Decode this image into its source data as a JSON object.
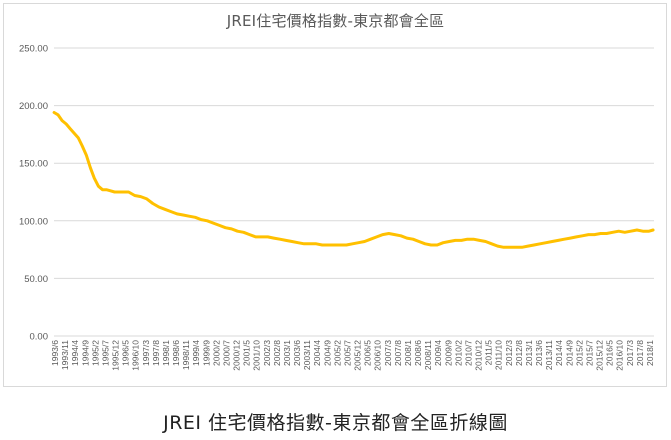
{
  "chart_data": {
    "type": "line",
    "title": "JREI住宅價格指數-東京都會全區",
    "xlabel": "",
    "ylabel": "",
    "ylim": [
      0,
      250
    ],
    "y_ticks": [
      "0.00",
      "50.00",
      "100.00",
      "150.00",
      "200.00",
      "250.00"
    ],
    "grid": true,
    "x_labels": [
      "1993/6",
      "1993/11",
      "1994/4",
      "1994/9",
      "1995/2",
      "1995/7",
      "1995/12",
      "1996/5",
      "1996/10",
      "1997/3",
      "1997/8",
      "1998/1",
      "1998/6",
      "1998/11",
      "1999/4",
      "1999/9",
      "2000/2",
      "2000/7",
      "2000/12",
      "2001/5",
      "2001/10",
      "2002/3",
      "2002/8",
      "2003/1",
      "2003/6",
      "2003/11",
      "2004/4",
      "2004/9",
      "2005/2",
      "2005/7",
      "2005/12",
      "2006/5",
      "2006/10",
      "2007/3",
      "2007/8",
      "2008/1",
      "2008/6",
      "2008/11",
      "2009/4",
      "2009/9",
      "2010/2",
      "2010/7",
      "2010/12",
      "2011/5",
      "2011/10",
      "2012/3",
      "2012/8",
      "2013/1",
      "2013/6",
      "2013/11",
      "2014/4",
      "2014/9",
      "2015/2",
      "2015/7",
      "2015/12",
      "2016/5",
      "2016/10",
      "2017/3",
      "2017/8",
      "2018/1"
    ],
    "series": [
      {
        "color": "#ffc000",
        "x": [
          1993.42,
          1993.58,
          1993.75,
          1993.92,
          1994.08,
          1994.25,
          1994.42,
          1994.58,
          1994.75,
          1994.92,
          1995.08,
          1995.25,
          1995.42,
          1995.58,
          1995.75,
          1995.92,
          1996.08,
          1996.25,
          1996.5,
          1996.75,
          1997.0,
          1997.25,
          1997.5,
          1997.75,
          1998.0,
          1998.25,
          1998.5,
          1998.75,
          1999.0,
          1999.25,
          1999.5,
          1999.75,
          2000.0,
          2000.25,
          2000.5,
          2000.75,
          2001.0,
          2001.25,
          2001.5,
          2001.75,
          2002.0,
          2002.25,
          2002.5,
          2002.75,
          2003.0,
          2003.25,
          2003.5,
          2003.75,
          2004.0,
          2004.25,
          2004.5,
          2004.75,
          2005.0,
          2005.25,
          2005.5,
          2005.75,
          2006.0,
          2006.25,
          2006.5,
          2006.75,
          2007.0,
          2007.25,
          2007.5,
          2007.75,
          2008.0,
          2008.25,
          2008.5,
          2008.75,
          2009.0,
          2009.25,
          2009.5,
          2009.75,
          2010.0,
          2010.25,
          2010.5,
          2010.75,
          2011.0,
          2011.25,
          2011.5,
          2011.75,
          2012.0,
          2012.25,
          2012.5,
          2012.75,
          2013.0,
          2013.25,
          2013.5,
          2013.75,
          2014.0,
          2014.25,
          2014.5,
          2014.75,
          2015.0,
          2015.25,
          2015.5,
          2015.75,
          2016.0,
          2016.25,
          2016.5,
          2016.75,
          2017.0,
          2017.25,
          2017.5,
          2017.75,
          2018.0,
          2018.17
        ],
        "values": [
          194,
          192,
          187,
          184,
          180,
          176,
          172,
          165,
          157,
          146,
          137,
          130,
          127,
          127,
          126,
          125,
          125,
          125,
          125,
          122,
          121,
          119,
          115,
          112,
          110,
          108,
          106,
          105,
          104,
          103,
          101,
          100,
          98,
          96,
          94,
          93,
          91,
          90,
          88,
          86,
          86,
          86,
          85,
          84,
          83,
          82,
          81,
          80,
          80,
          80,
          79,
          79,
          79,
          79,
          79,
          80,
          81,
          82,
          84,
          86,
          88,
          89,
          88,
          87,
          85,
          84,
          82,
          80,
          79,
          79,
          81,
          82,
          83,
          83,
          84,
          84,
          83,
          82,
          80,
          78,
          77,
          77,
          77,
          77,
          78,
          79,
          80,
          81,
          82,
          83,
          84,
          85,
          86,
          87,
          88,
          88,
          89,
          89,
          90,
          91,
          90,
          91,
          92,
          91,
          91,
          92
        ]
      }
    ]
  },
  "caption": "JREI 住宅價格指數-東京都會全區折線圖"
}
